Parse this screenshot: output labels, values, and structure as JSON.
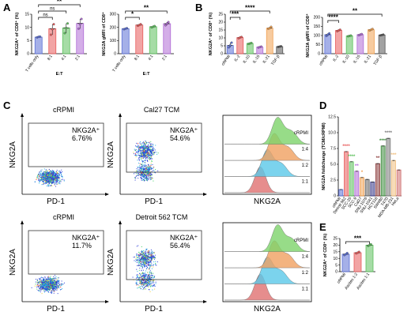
{
  "panels": {
    "A": "A",
    "B": "B",
    "C": "C",
    "D": "D",
    "E": "E"
  },
  "chart_data": [
    {
      "id": "A1",
      "type": "bar",
      "ylabel": "NKG2A⁺ of CD8⁺ (%)",
      "xlabel": "E:T",
      "ylim": [
        0,
        15
      ],
      "yticks": [
        "0",
        "5",
        "10",
        "15"
      ],
      "categories": [
        "T cells only",
        "8:1",
        "4:1",
        "2:1"
      ],
      "values": [
        6.3,
        9.5,
        9.8,
        11.5
      ],
      "points": [
        [
          6.2,
          6.4,
          6.5
        ],
        [
          7.2,
          9.3,
          11.2
        ],
        [
          7.8,
          9.8,
          11.5
        ],
        [
          9.5,
          11.2,
          13.2
        ]
      ],
      "colors": [
        "#5b6fd6",
        "#e85a5a",
        "#5cc05c",
        "#b06bd6"
      ],
      "brackets": [
        {
          "from": 0,
          "to": 1,
          "text": "ns",
          "level": 0
        },
        {
          "from": 0,
          "to": 2,
          "text": "ns",
          "level": 1
        },
        {
          "from": 0,
          "to": 3,
          "text": "**",
          "level": 2
        }
      ]
    },
    {
      "id": "A2",
      "type": "bar",
      "ylabel": "NKG2A gMFI of CD8⁺",
      "xlabel": "E:T",
      "ylim": [
        0,
        300
      ],
      "yticks": [
        "0",
        "100",
        "200",
        "300"
      ],
      "categories": [
        "T cells only",
        "8:1",
        "4:1",
        "2:1"
      ],
      "values": [
        190,
        218,
        205,
        228
      ],
      "points": [
        [
          186,
          190,
          194
        ],
        [
          212,
          218,
          224
        ],
        [
          200,
          205,
          210
        ],
        [
          216,
          228,
          240
        ]
      ],
      "colors": [
        "#5b6fd6",
        "#e85a5a",
        "#5cc05c",
        "#b06bd6"
      ],
      "brackets": [
        {
          "from": 0,
          "to": 1,
          "text": "*",
          "level": 0
        },
        {
          "from": 0,
          "to": 3,
          "text": "**",
          "level": 1
        }
      ]
    },
    {
      "id": "B1",
      "type": "bar",
      "ylabel": "NKG2A⁺ of CD8⁺ (%)",
      "ylim": [
        0,
        25
      ],
      "yticks": [
        "0",
        "5",
        "10",
        "15",
        "20",
        "25"
      ],
      "categories": [
        "cRPMI",
        "IL-2",
        "IL-10",
        "IL-15",
        "IL-21",
        "TGF-β"
      ],
      "values": [
        5.2,
        10.2,
        6.5,
        4.2,
        16.2,
        4.5
      ],
      "points": [
        [
          4.0,
          5.2,
          7.0
        ],
        [
          9.8,
          10.3,
          10.6
        ],
        [
          6.2,
          6.5,
          6.8
        ],
        [
          3.9,
          4.2,
          4.5
        ],
        [
          15.8,
          16.2,
          17.0
        ],
        [
          4.3,
          4.5,
          4.7
        ]
      ],
      "colors": [
        "#5b6fd6",
        "#e85a5a",
        "#5cc05c",
        "#b06bd6",
        "#f0a050",
        "#555555"
      ],
      "brackets": [
        {
          "from": 0,
          "to": 1,
          "text": "***",
          "level": 0
        },
        {
          "from": 0,
          "to": 4,
          "text": "****",
          "level": 1
        }
      ]
    },
    {
      "id": "B2",
      "type": "bar",
      "ylabel": "NKG2A gMFI of CD8⁺",
      "ylim": [
        0,
        200
      ],
      "yticks": [
        "0",
        "50",
        "100",
        "150",
        "200"
      ],
      "categories": [
        "cRPMI",
        "IL-2",
        "IL-10",
        "IL-15",
        "IL-21",
        "TGF-β"
      ],
      "values": [
        105,
        128,
        98,
        105,
        132,
        103
      ],
      "points": [
        [
          98,
          105,
          112
        ],
        [
          124,
          128,
          132
        ],
        [
          96,
          98,
          100
        ],
        [
          102,
          105,
          108
        ],
        [
          128,
          132,
          136
        ],
        [
          101,
          103,
          105
        ]
      ],
      "colors": [
        "#5b6fd6",
        "#e85a5a",
        "#5cc05c",
        "#b06bd6",
        "#f0a050",
        "#555555"
      ],
      "brackets": [
        {
          "from": 0,
          "to": 1,
          "text": "****",
          "level": 0
        },
        {
          "from": 0,
          "to": 5,
          "text": "**",
          "level": 1
        }
      ]
    },
    {
      "id": "D",
      "type": "bar",
      "ylabel": "NKG2A foldchange (TCM/cRPMI)",
      "ylim": [
        0,
        12.5
      ],
      "yticks": [
        "0",
        "2.5",
        "5.0",
        "7.5",
        "10.0",
        "12.5"
      ],
      "categories": [
        "cRPMI",
        "Detroit 562",
        "SCC-25",
        "SCC-9",
        "Cal27",
        "SNU-1076",
        "SNU-1041",
        "HCT116",
        "SW480",
        "T47D",
        "MDA-MB-231",
        "HeLa"
      ],
      "values": [
        1.0,
        7.0,
        5.4,
        3.9,
        2.9,
        2.6,
        2.2,
        5.1,
        7.9,
        9.1,
        5.6,
        4.1
      ],
      "colors": [
        "#5b6fd6",
        "#e85a5a",
        "#5cc05c",
        "#b06bd6",
        "#f0a050",
        "#666666",
        "#3a3a8a",
        "#8a3a3a",
        "#3a8a3a",
        "#7a7a7a",
        "#f0c080",
        "#d07070"
      ],
      "sig": [
        "",
        "****",
        "****",
        "**",
        "*",
        "",
        "",
        "**",
        "****",
        "****",
        "***",
        ""
      ]
    },
    {
      "id": "E",
      "type": "bar",
      "ylabel": "NKG2A⁺ of CD8⁺ (%)",
      "ylim": [
        0,
        25
      ],
      "yticks": [
        "0",
        "5",
        "10",
        "15",
        "20",
        "25"
      ],
      "categories": [
        "cRPMI",
        "Ascites 1:2",
        "Ascites 1:1"
      ],
      "values": [
        13.2,
        14.3,
        20.0
      ],
      "points": [
        [
          12.5,
          13.2,
          14.0
        ],
        [
          13.8,
          14.3,
          14.9
        ],
        [
          19.4,
          20.0,
          20.6
        ]
      ],
      "colors": [
        "#5b6fd6",
        "#e85a5a",
        "#5cc05c"
      ],
      "brackets": [
        {
          "from": 0,
          "to": 2,
          "text": "***",
          "level": 0
        }
      ]
    }
  ],
  "flow": {
    "plots": [
      {
        "title": "cRPMI",
        "gate": "NKG2A⁺",
        "pct": "6.76%"
      },
      {
        "title": "Cal27 TCM",
        "gate": "NKG2A⁺",
        "pct": "54.6%"
      },
      {
        "title": "cRPMI",
        "gate": "NKG2A⁺",
        "pct": "11.7%"
      },
      {
        "title": "Detroit 562 TCM",
        "gate": "NKG2A⁺",
        "pct": "56.4%"
      }
    ],
    "xaxis": "PD-1",
    "yaxis": "NKG2A",
    "hist_x": "NKG2A",
    "hist_labels": [
      "1:1",
      "1:2",
      "1:4",
      "cRPMI"
    ]
  }
}
